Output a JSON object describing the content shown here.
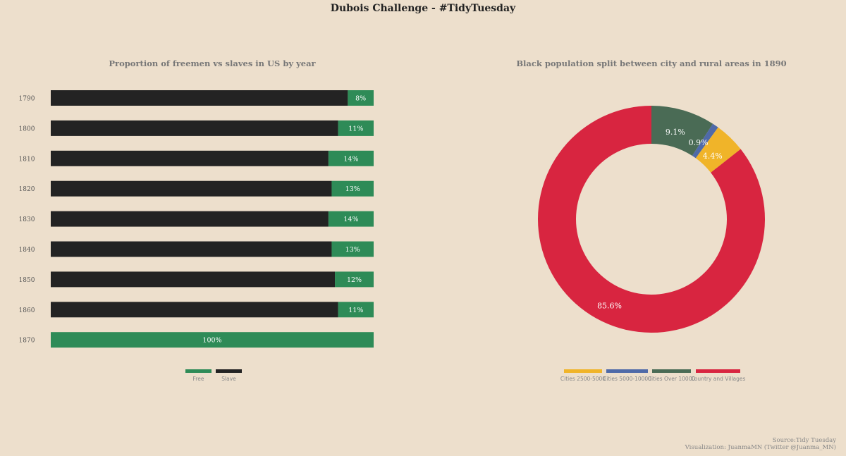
{
  "title": "Dubois Challenge - #TidyTuesday",
  "footer": {
    "source": "Source:Tidy Tuesday",
    "credit": "Visualization: JuanmaMN (Twitter @Juanma_MN)"
  },
  "colors": {
    "background": "#eddfcc",
    "free": "#2e8b57",
    "slave": "#232323",
    "cities_2500_5000": "#f0b429",
    "cities_5000_10000": "#4f6aa8",
    "cities_over_10000": "#4a6b55",
    "country_villages": "#d82540"
  },
  "chart_data": [
    {
      "type": "bar",
      "orientation": "horizontal",
      "stacked": true,
      "title": "Proportion of freemen vs slaves in US by year",
      "categories": [
        "1790",
        "1800",
        "1810",
        "1820",
        "1830",
        "1840",
        "1850",
        "1860",
        "1870"
      ],
      "series": [
        {
          "name": "Slave",
          "values": [
            92,
            89,
            86,
            87,
            86,
            87,
            88,
            89,
            0
          ]
        },
        {
          "name": "Free",
          "values": [
            8,
            11,
            14,
            13,
            14,
            13,
            12,
            11,
            100
          ]
        }
      ],
      "data_labels": [
        "8%",
        "11%",
        "14%",
        "13%",
        "14%",
        "13%",
        "12%",
        "11%",
        "100%"
      ],
      "legend": [
        "Free",
        "Slave"
      ],
      "legend_position": "bottom",
      "xlim": [
        0,
        100
      ]
    },
    {
      "type": "pie",
      "donut": true,
      "title": "Black population split between city and rural areas in 1890",
      "labels": [
        "Cities 2500-5000",
        "Cities 5000-10000",
        "Cities Over 10000",
        "Country and Villages"
      ],
      "values": [
        4.4,
        0.9,
        9.1,
        85.6
      ],
      "data_labels": [
        "4.4%",
        "0.9%",
        "9.1%",
        "85.6%"
      ],
      "legend_position": "bottom"
    }
  ]
}
